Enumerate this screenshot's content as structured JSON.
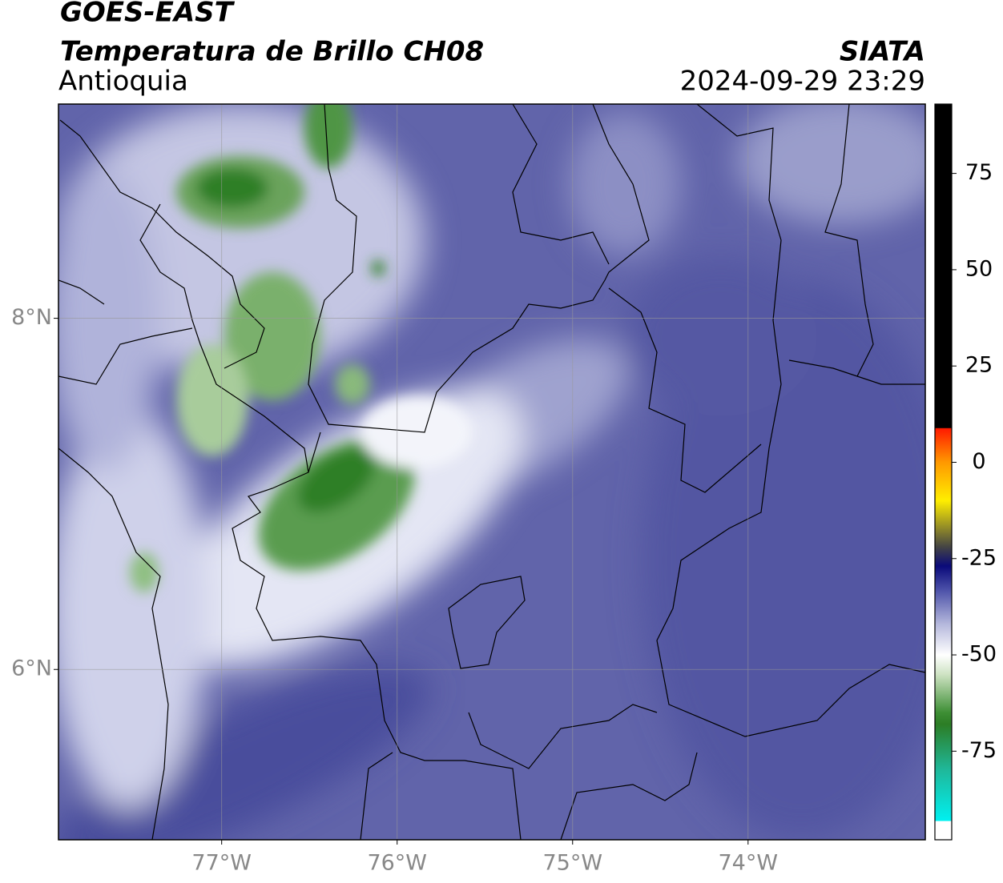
{
  "map": {
    "title": "GOES-EAST",
    "subtitle": "Temperatura de Brillo CH08",
    "region": "Antioquia",
    "source": "SIATA",
    "timestamp": "2024-09-29 23:29",
    "xlim": [
      -77.93,
      -72.99
    ],
    "ylim": [
      5.03,
      9.22
    ],
    "xticks": [
      {
        "value": -77,
        "label": "77°W"
      },
      {
        "value": -76,
        "label": "76°W"
      },
      {
        "value": -75,
        "label": "75°W"
      },
      {
        "value": -74,
        "label": "74°W"
      }
    ],
    "yticks": [
      {
        "value": 8,
        "label": "8°N"
      },
      {
        "value": 6,
        "label": "6°N"
      }
    ],
    "grid": true,
    "colorbar": {
      "lim": [
        -98,
        93
      ],
      "ticks": [
        75,
        50,
        25,
        0,
        -25,
        -50,
        -75
      ]
    }
  }
}
